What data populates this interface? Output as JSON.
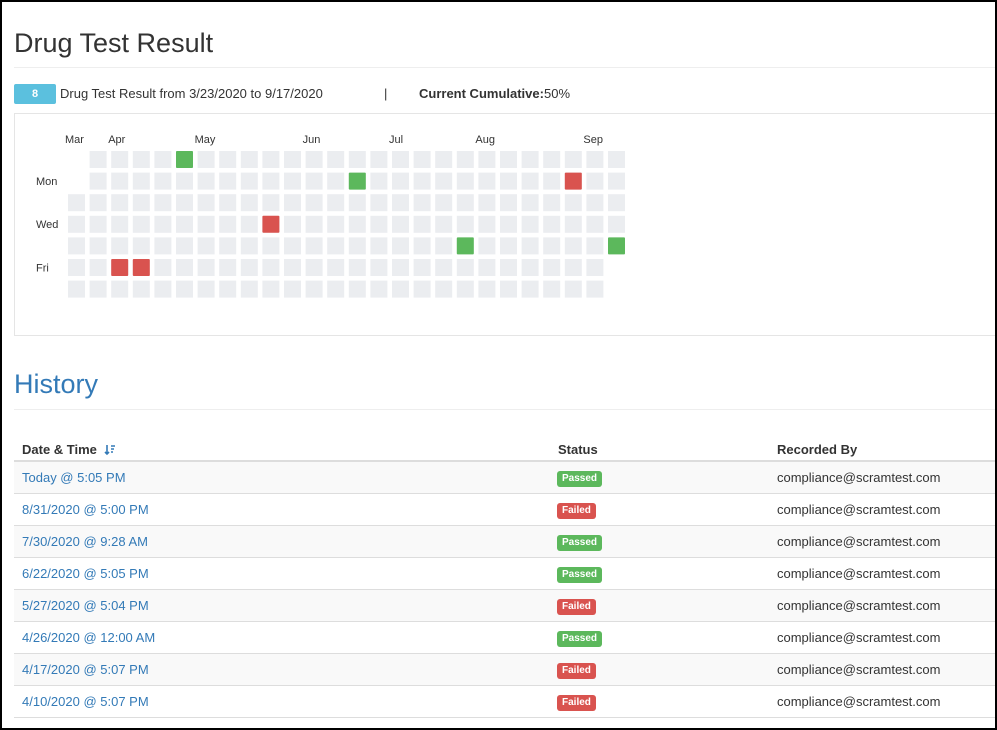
{
  "header": {
    "title": "Drug Test Result",
    "count": 8,
    "range": "Drug Test Result from 3/23/2020 to 9/17/2020",
    "separator": "|",
    "cumulative_label": "Current Cumulative:",
    "cumulative_value": "50%"
  },
  "calendar": {
    "months": [
      {
        "label": "Mar",
        "week": 0
      },
      {
        "label": "Apr",
        "week": 2
      },
      {
        "label": "May",
        "week": 6
      },
      {
        "label": "Jun",
        "week": 11
      },
      {
        "label": "Jul",
        "week": 15
      },
      {
        "label": "Aug",
        "week": 19
      },
      {
        "label": "Sep",
        "week": 24
      }
    ],
    "days": [
      {
        "label": "Mon",
        "row": 1
      },
      {
        "label": "Wed",
        "row": 3
      },
      {
        "label": "Fri",
        "row": 5
      }
    ],
    "empty_color": "#ebedf0",
    "marks": [
      {
        "week": 5,
        "row": 0,
        "color": "#5cb85c"
      },
      {
        "week": 13,
        "row": 1,
        "color": "#5cb85c"
      },
      {
        "week": 23,
        "row": 1,
        "color": "#d9534f"
      },
      {
        "week": 9,
        "row": 3,
        "color": "#d9534f"
      },
      {
        "week": 18,
        "row": 4,
        "color": "#5cb85c"
      },
      {
        "week": 25,
        "row": 4,
        "color": "#5cb85c"
      },
      {
        "week": 2,
        "row": 5,
        "color": "#d9534f"
      },
      {
        "week": 3,
        "row": 5,
        "color": "#d9534f"
      }
    ]
  },
  "history": {
    "title": "History",
    "columns": [
      "Date & Time",
      "Status",
      "Recorded By"
    ],
    "rows": [
      {
        "date": "Today @ 5:05 PM",
        "status": "Passed",
        "status_color": "#5cb85c",
        "recorded_by": "compliance@scramtest.com"
      },
      {
        "date": "8/31/2020 @ 5:00 PM",
        "status": "Failed",
        "status_color": "#d9534f",
        "recorded_by": "compliance@scramtest.com"
      },
      {
        "date": "7/30/2020 @ 9:28 AM",
        "status": "Passed",
        "status_color": "#5cb85c",
        "recorded_by": "compliance@scramtest.com"
      },
      {
        "date": "6/22/2020 @ 5:05 PM",
        "status": "Passed",
        "status_color": "#5cb85c",
        "recorded_by": "compliance@scramtest.com"
      },
      {
        "date": "5/27/2020 @ 5:04 PM",
        "status": "Failed",
        "status_color": "#d9534f",
        "recorded_by": "compliance@scramtest.com"
      },
      {
        "date": "4/26/2020 @ 12:00 AM",
        "status": "Passed",
        "status_color": "#5cb85c",
        "recorded_by": "compliance@scramtest.com"
      },
      {
        "date": "4/17/2020 @ 5:07 PM",
        "status": "Failed",
        "status_color": "#d9534f",
        "recorded_by": "compliance@scramtest.com"
      },
      {
        "date": "4/10/2020 @ 5:07 PM",
        "status": "Failed",
        "status_color": "#d9534f",
        "recorded_by": "compliance@scramtest.com"
      }
    ]
  }
}
